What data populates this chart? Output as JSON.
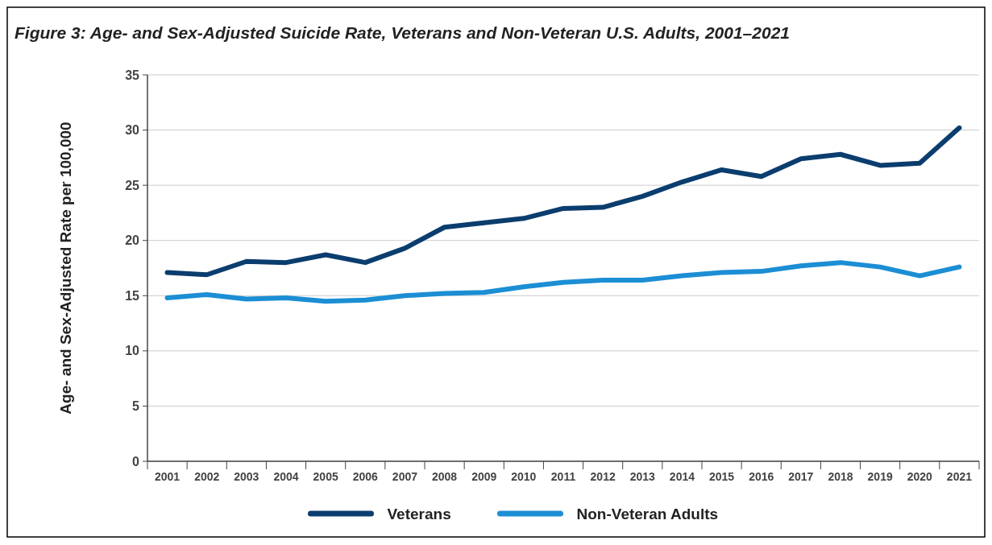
{
  "chart_data": {
    "type": "line",
    "title": "Figure 3: Age- and Sex-Adjusted Suicide Rate, Veterans and Non-Veteran U.S. Adults, 2001–2021",
    "ylabel": "Age- and Sex-Adjusted Rate per 100,000",
    "categories": [
      "2001",
      "2002",
      "2003",
      "2004",
      "2005",
      "2006",
      "2007",
      "2008",
      "2009",
      "2010",
      "2011",
      "2012",
      "2013",
      "2014",
      "2015",
      "2016",
      "2017",
      "2018",
      "2019",
      "2020",
      "2021"
    ],
    "series": [
      {
        "name": "Veterans",
        "color": "#0b3d6e",
        "values": [
          17.1,
          16.9,
          18.1,
          18.0,
          18.7,
          18.0,
          19.3,
          21.2,
          21.6,
          22.0,
          22.9,
          23.0,
          24.0,
          25.3,
          26.4,
          25.8,
          27.4,
          27.8,
          26.8,
          27.0,
          30.2
        ]
      },
      {
        "name": "Non-Veteran Adults",
        "color": "#1b8ed4",
        "values": [
          14.8,
          15.1,
          14.7,
          14.8,
          14.5,
          14.6,
          15.0,
          15.2,
          15.3,
          15.8,
          16.2,
          16.4,
          16.4,
          16.8,
          17.1,
          17.2,
          17.7,
          18.0,
          17.6,
          16.8,
          17.6
        ]
      }
    ],
    "ylim": [
      0,
      35
    ],
    "yticks": [
      0,
      5,
      10,
      15,
      20,
      25,
      30,
      35
    ],
    "grid": "y",
    "legend": "bottom",
    "marker": "none",
    "line_style": "solid"
  }
}
